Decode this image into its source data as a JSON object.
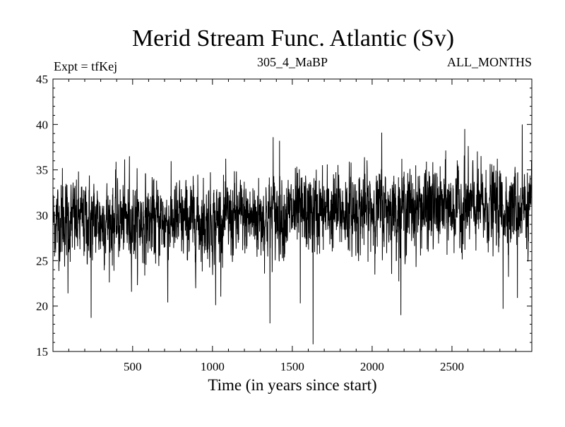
{
  "chart_data": {
    "type": "line",
    "title": "Merid Stream Func. Atlantic (Sv)",
    "subtitle_left": "Expt = tfKej",
    "subtitle_center": "305_4_MaBP",
    "subtitle_right": "ALL_MONTHS",
    "xlabel": "Time (in years since start)",
    "ylabel": "",
    "xlim": [
      1,
      3000
    ],
    "ylim": [
      15,
      45
    ],
    "x_ticks": [
      500,
      1000,
      1500,
      2000,
      2500
    ],
    "y_ticks": [
      15,
      20,
      25,
      30,
      35,
      40,
      45
    ],
    "grid": false,
    "series": [
      {
        "color": "#000000",
        "points": 3000,
        "baseline_trend": [
          [
            1,
            29.4
          ],
          [
            1000,
            29.3
          ],
          [
            1400,
            30.0
          ],
          [
            2000,
            30.6
          ],
          [
            2500,
            30.8
          ],
          [
            3000,
            31.0
          ]
        ],
        "std_dev": 2.2,
        "range": [
          15.8,
          40.0
        ],
        "notable_extremes": [
          {
            "x": 60,
            "y": 35.2
          },
          {
            "x": 95,
            "y": 21.4
          },
          {
            "x": 240,
            "y": 18.7
          },
          {
            "x": 480,
            "y": 36.5
          },
          {
            "x": 720,
            "y": 20.4
          },
          {
            "x": 1020,
            "y": 20.1
          },
          {
            "x": 1360,
            "y": 18.1
          },
          {
            "x": 1380,
            "y": 38.6
          },
          {
            "x": 1420,
            "y": 38.2
          },
          {
            "x": 1550,
            "y": 20.3
          },
          {
            "x": 1630,
            "y": 15.8
          },
          {
            "x": 2060,
            "y": 39.1
          },
          {
            "x": 2180,
            "y": 19.0
          },
          {
            "x": 2580,
            "y": 39.5
          },
          {
            "x": 2820,
            "y": 19.7
          },
          {
            "x": 2940,
            "y": 40.0
          },
          {
            "x": 2910,
            "y": 20.9
          }
        ]
      }
    ]
  }
}
